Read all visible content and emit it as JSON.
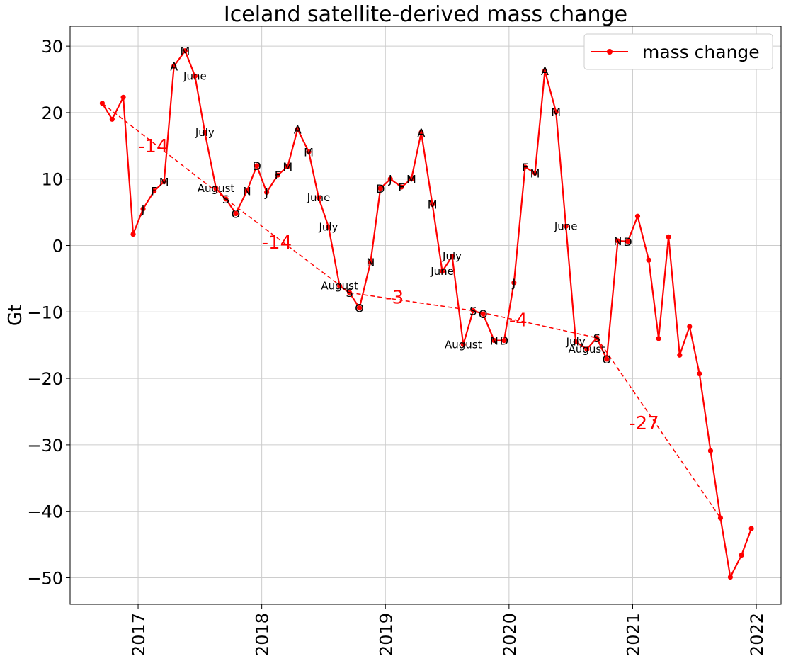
{
  "chart_data": {
    "type": "line",
    "title": "Iceland satellite-derived mass change",
    "xlabel": "",
    "ylabel": "Gt",
    "xlim": [
      2016.45,
      2022.2
    ],
    "ylim": [
      -54,
      33
    ],
    "x_ticks": [
      2017,
      2018,
      2019,
      2020,
      2021,
      2022
    ],
    "x_tick_labels": [
      "2017",
      "2018",
      "2019",
      "2020",
      "2021",
      "2022"
    ],
    "y_ticks": [
      30,
      20,
      10,
      0,
      -10,
      -20,
      -30,
      -40,
      -50
    ],
    "y_tick_labels": [
      "30",
      "20",
      "10",
      "0",
      "−10",
      "−20",
      "−30",
      "−40",
      "−50"
    ],
    "grid": true,
    "legend": {
      "position": "top-right",
      "entries": [
        "mass change"
      ]
    },
    "colors": {
      "series": "#ff0000",
      "grid": "#cccccc",
      "axis": "#000000"
    },
    "series": [
      {
        "name": "mass change",
        "x": [
          2016.71,
          2016.79,
          2016.88,
          2016.96,
          2017.04,
          2017.13,
          2017.21,
          2017.29,
          2017.38,
          2017.46,
          2017.54,
          2017.63,
          2017.71,
          2017.79,
          2017.88,
          2017.96,
          2018.04,
          2018.13,
          2018.21,
          2018.29,
          2018.38,
          2018.46,
          2018.54,
          2018.63,
          2018.71,
          2018.79,
          2018.88,
          2018.96,
          2019.04,
          2019.13,
          2019.21,
          2019.29,
          2019.38,
          2019.46,
          2019.54,
          2019.63,
          2019.71,
          2019.79,
          2019.88,
          2019.96,
          2020.04,
          2020.13,
          2020.21,
          2020.29,
          2020.38,
          2020.46,
          2020.54,
          2020.63,
          2020.71,
          2020.79,
          2020.88,
          2020.96,
          2021.04,
          2021.13,
          2021.21,
          2021.29,
          2021.38,
          2021.46,
          2021.54,
          2021.63,
          2021.71,
          2021.79,
          2021.88,
          2021.96
        ],
        "y": [
          21.4,
          19.0,
          22.3,
          1.7,
          5.5,
          8.2,
          9.6,
          27.0,
          29.3,
          25.5,
          17.0,
          8.6,
          7.0,
          4.8,
          8.2,
          12.0,
          8.0,
          10.6,
          11.9,
          17.5,
          14.1,
          7.2,
          2.8,
          -6.1,
          -7.1,
          -9.4,
          -2.5,
          8.6,
          10.0,
          8.8,
          10.0,
          17.0,
          6.2,
          -3.9,
          -1.6,
          -14.9,
          -9.8,
          -10.3,
          -14.3,
          -14.3,
          -5.6,
          11.8,
          10.9,
          26.3,
          20.1,
          2.9,
          -14.5,
          -15.6,
          -13.9,
          -17.1,
          0.7,
          0.6,
          4.4,
          -2.2,
          -14.0,
          1.3,
          -16.5,
          -12.2,
          -19.3,
          -30.9,
          -41.0,
          -49.9,
          -46.6,
          -42.6
        ]
      }
    ],
    "month_annotations": {
      "letters": [
        {
          "text": "J",
          "x": 2017.04,
          "y": 5.5
        },
        {
          "text": "F",
          "x": 2017.13,
          "y": 8.2
        },
        {
          "text": "M",
          "x": 2017.21,
          "y": 9.6
        },
        {
          "text": "A",
          "x": 2017.29,
          "y": 27.0
        },
        {
          "text": "M",
          "x": 2017.38,
          "y": 29.3
        },
        {
          "text": "S",
          "x": 2017.71,
          "y": 7.0
        },
        {
          "text": "O",
          "x": 2017.79,
          "y": 4.8
        },
        {
          "text": "N",
          "x": 2017.88,
          "y": 8.2
        },
        {
          "text": "D",
          "x": 2017.96,
          "y": 12.0
        },
        {
          "text": "J",
          "x": 2018.04,
          "y": 8.0
        },
        {
          "text": "F",
          "x": 2018.13,
          "y": 10.6
        },
        {
          "text": "M",
          "x": 2018.21,
          "y": 11.9
        },
        {
          "text": "A",
          "x": 2018.29,
          "y": 17.5
        },
        {
          "text": "M",
          "x": 2018.38,
          "y": 14.1
        },
        {
          "text": "S",
          "x": 2018.71,
          "y": -7.1
        },
        {
          "text": "O",
          "x": 2018.79,
          "y": -9.4
        },
        {
          "text": "N",
          "x": 2018.88,
          "y": -2.5
        },
        {
          "text": "D",
          "x": 2018.96,
          "y": 8.6
        },
        {
          "text": "J",
          "x": 2019.04,
          "y": 10.0
        },
        {
          "text": "F",
          "x": 2019.13,
          "y": 8.8
        },
        {
          "text": "M",
          "x": 2019.21,
          "y": 10.0
        },
        {
          "text": "A",
          "x": 2019.29,
          "y": 17.0
        },
        {
          "text": "M",
          "x": 2019.38,
          "y": 6.2
        },
        {
          "text": "S",
          "x": 2019.71,
          "y": -9.8
        },
        {
          "text": "O",
          "x": 2019.79,
          "y": -10.3
        },
        {
          "text": "N",
          "x": 2019.88,
          "y": -14.3
        },
        {
          "text": "D",
          "x": 2019.96,
          "y": -14.3
        },
        {
          "text": "J",
          "x": 2020.04,
          "y": -5.6
        },
        {
          "text": "F",
          "x": 2020.13,
          "y": 11.8
        },
        {
          "text": "M",
          "x": 2020.21,
          "y": 10.9
        },
        {
          "text": "A",
          "x": 2020.29,
          "y": 26.3
        },
        {
          "text": "M",
          "x": 2020.38,
          "y": 20.1
        },
        {
          "text": "S",
          "x": 2020.71,
          "y": -13.9
        },
        {
          "text": "O",
          "x": 2020.79,
          "y": -17.1
        },
        {
          "text": "N",
          "x": 2020.88,
          "y": 0.7
        },
        {
          "text": "D",
          "x": 2020.96,
          "y": 0.6
        }
      ],
      "names": [
        {
          "text": "June",
          "x": 2017.46,
          "y": 25.5
        },
        {
          "text": "July",
          "x": 2017.54,
          "y": 17.0
        },
        {
          "text": "August",
          "x": 2017.63,
          "y": 8.6
        },
        {
          "text": "June",
          "x": 2018.46,
          "y": 7.2
        },
        {
          "text": "July",
          "x": 2018.54,
          "y": 2.8
        },
        {
          "text": "August",
          "x": 2018.63,
          "y": -6.1
        },
        {
          "text": "June",
          "x": 2019.46,
          "y": -3.9
        },
        {
          "text": "July",
          "x": 2019.54,
          "y": -1.6
        },
        {
          "text": "August",
          "x": 2019.63,
          "y": -14.9
        },
        {
          "text": "June",
          "x": 2020.46,
          "y": 2.9
        },
        {
          "text": "July",
          "x": 2020.54,
          "y": -14.5
        },
        {
          "text": "August",
          "x": 2020.63,
          "y": -15.6
        }
      ]
    },
    "trend_lines": {
      "points": [
        {
          "x": 2016.71,
          "y": 21.4
        },
        {
          "x": 2017.71,
          "y": 7.0
        },
        {
          "x": 2018.71,
          "y": -7.1
        },
        {
          "x": 2019.71,
          "y": -9.8
        },
        {
          "x": 2020.71,
          "y": -13.9
        },
        {
          "x": 2021.71,
          "y": -41.0
        }
      ],
      "labels": [
        {
          "text": "-14",
          "x": 2017.0,
          "y": 15.0
        },
        {
          "text": "-14",
          "x": 2018.0,
          "y": 0.5
        },
        {
          "text": "-3",
          "x": 2019.0,
          "y": -7.8
        },
        {
          "text": "-4",
          "x": 2020.0,
          "y": -11.2
        },
        {
          "text": "-27",
          "x": 2020.97,
          "y": -26.7
        }
      ]
    }
  }
}
